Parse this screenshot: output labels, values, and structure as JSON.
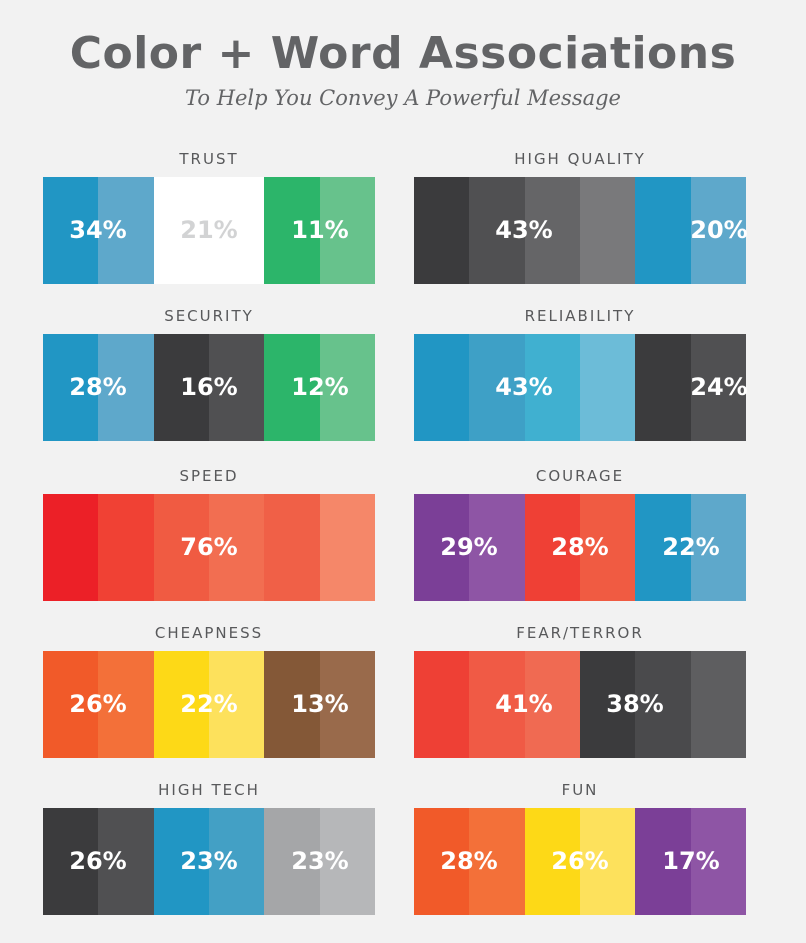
{
  "header": {
    "title": "Color + Word Associations",
    "subtitle": "To Help You Convey A Powerful Message"
  },
  "panels": [
    {
      "label": "TRUST",
      "colors": [
        "#2196c4",
        "#5ea8cb",
        "#ffffff",
        "#ffffff",
        "#2cb56a",
        "#67c28c"
      ],
      "values": [
        "34%",
        "21%",
        "11%"
      ],
      "value_colors": [
        "#ffffff",
        "#d2d3d4",
        "#ffffff"
      ]
    },
    {
      "label": "HIGH QUALITY",
      "colors": [
        "#3b3b3d",
        "#505052",
        "#656567",
        "#79797b",
        "#2196c4",
        "#5ea8cb"
      ],
      "values": [
        "43%",
        "20%"
      ],
      "value_colors": [
        "#ffffff",
        "#ffffff"
      ]
    },
    {
      "label": "SECURITY",
      "colors": [
        "#2196c4",
        "#5ea8cb",
        "#3b3b3d",
        "#505052",
        "#2cb56a",
        "#67c28c"
      ],
      "values": [
        "28%",
        "16%",
        "12%"
      ],
      "value_colors": [
        "#ffffff",
        "#ffffff",
        "#ffffff"
      ]
    },
    {
      "label": "RELIABILITY",
      "colors": [
        "#2196c4",
        "#3ea0c6",
        "#40b0d0",
        "#6cbcd8",
        "#3b3b3d",
        "#505052"
      ],
      "values": [
        "43%",
        "24%"
      ],
      "value_colors": [
        "#ffffff",
        "#ffffff"
      ]
    },
    {
      "label": "SPEED",
      "colors": [
        "#ec2027",
        "#f04134",
        "#f05b42",
        "#f26e51",
        "#f06047",
        "#f58769"
      ],
      "values": [
        "76%"
      ],
      "value_colors": [
        "#ffffff"
      ]
    },
    {
      "label": "COURAGE",
      "colors": [
        "#7b3f97",
        "#8e55a5",
        "#ef4035",
        "#f05b42",
        "#2196c4",
        "#5ea8cb"
      ],
      "values": [
        "29%",
        "28%",
        "22%"
      ],
      "value_colors": [
        "#ffffff",
        "#ffffff",
        "#ffffff"
      ]
    },
    {
      "label": "CHEAPNESS",
      "colors": [
        "#f15a29",
        "#f37039",
        "#fdd917",
        "#fde15c",
        "#845837",
        "#996a4b"
      ],
      "values": [
        "26%",
        "22%",
        "13%"
      ],
      "value_colors": [
        "#ffffff",
        "#ffffff",
        "#ffffff"
      ]
    },
    {
      "label": "FEAR/TERROR",
      "colors": [
        "#ee4035",
        "#f05a45",
        "#f06a52",
        "#3b3b3d",
        "#4a4a4c",
        "#5e5e60"
      ],
      "values": [
        "41%",
        "38%"
      ],
      "value_colors": [
        "#ffffff",
        "#ffffff"
      ]
    },
    {
      "label": "HIGH TECH",
      "colors": [
        "#3b3b3d",
        "#505052",
        "#2196c4",
        "#43a0c5",
        "#a5a6a8",
        "#b6b7b9"
      ],
      "values": [
        "26%",
        "23%",
        "23%"
      ],
      "value_colors": [
        "#ffffff",
        "#ffffff",
        "#ffffff"
      ]
    },
    {
      "label": "FUN",
      "colors": [
        "#f15a29",
        "#f37039",
        "#fdd917",
        "#fde15c",
        "#7b3f97",
        "#8e55a5"
      ],
      "values": [
        "28%",
        "26%",
        "17%"
      ],
      "value_colors": [
        "#ffffff",
        "#ffffff",
        "#ffffff"
      ]
    }
  ]
}
